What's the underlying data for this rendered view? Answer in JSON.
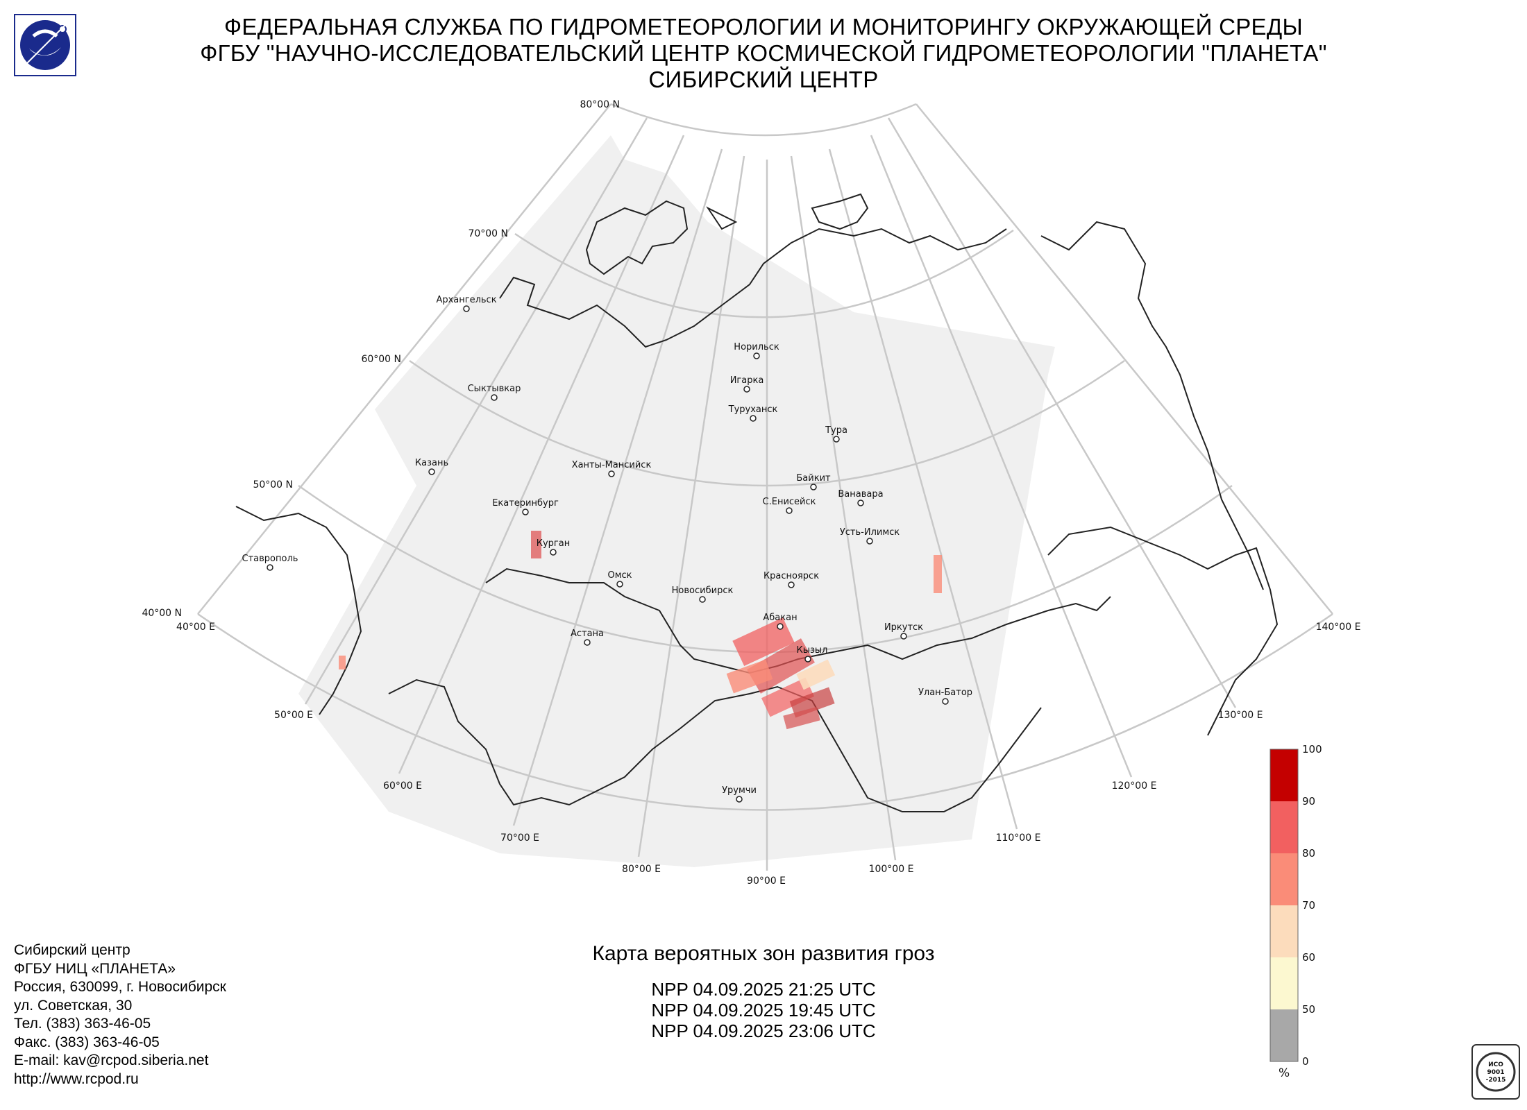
{
  "header": {
    "line1": "ФЕДЕРАЛЬНАЯ СЛУЖБА ПО ГИДРОМЕТЕОРОЛОГИИ И МОНИТОРИНГУ ОКРУЖАЮЩЕЙ СРЕДЫ",
    "line2": "ФГБУ \"НАУЧНО-ИССЛЕДОВАТЕЛЬСКИЙ ЦЕНТР КОСМИЧЕСКОЙ ГИДРОМЕТЕОРОЛОГИИ \"ПЛАНЕТА\"",
    "line3": "СИБИРСКИЙ ЦЕНТР"
  },
  "map": {
    "lat_labels": [
      "80°00 N",
      "70°00 N",
      "60°00 N",
      "50°00 N",
      "40°00 N"
    ],
    "lon_labels": [
      "40°00 E",
      "50°00 E",
      "60°00 E",
      "70°00 E",
      "80°00 E",
      "90°00 E",
      "100°00 E",
      "110°00 E",
      "120°00 E",
      "130°00 E",
      "140°00 E"
    ],
    "cities": [
      "Архангельск",
      "Норильск",
      "Игарка",
      "Туруханск",
      "Сыктывкар",
      "Тура",
      "Казань",
      "Ханты-Мансийск",
      "Байкит",
      "Ванавара",
      "Екатеринбург",
      "С.Енисейск",
      "Усть-Илимск",
      "Ставрополь",
      "Курган",
      "Омск",
      "Красноярск",
      "Новосибирск",
      "Абакан",
      "Иркутск",
      "Астана",
      "Кызыл",
      "Улан-Батор",
      "Урумчи"
    ],
    "colors": {
      "grid": "#c8c8c8",
      "coverage": "#f0f0f0",
      "coast": "#222222"
    }
  },
  "legend": {
    "ticks": [
      "100",
      "90",
      "80",
      "70",
      "60",
      "50",
      "0"
    ],
    "unit": "%",
    "colors": [
      "#c40000",
      "#f26060",
      "#fa8c78",
      "#fcdcbc",
      "#fcf8d0",
      "#a8a8a8"
    ]
  },
  "contact": {
    "line1": "Сибирский центр",
    "line2": "ФГБУ НИЦ «ПЛАНЕТА»",
    "line3": "Россия, 630099, г. Новосибирск",
    "line4": "ул. Советская, 30",
    "line5": "Тел. (383) 363-46-05",
    "line6": "Факс. (383) 363-46-05",
    "line7": "E-mail: kav@rcpod.siberia.net",
    "line8": "http://www.rcpod.ru"
  },
  "caption": {
    "title": "Карта вероятных зон развития гроз",
    "pass1": "NPP 04.09.2025  21:25 UTC",
    "pass2": "NPP 04.09.2025  19:45 UTC",
    "pass3": "NPP 04.09.2025  23:06 UTC"
  },
  "iso_badge": {
    "line1": "ИСО",
    "line2": "9001",
    "line3": "-2015"
  }
}
